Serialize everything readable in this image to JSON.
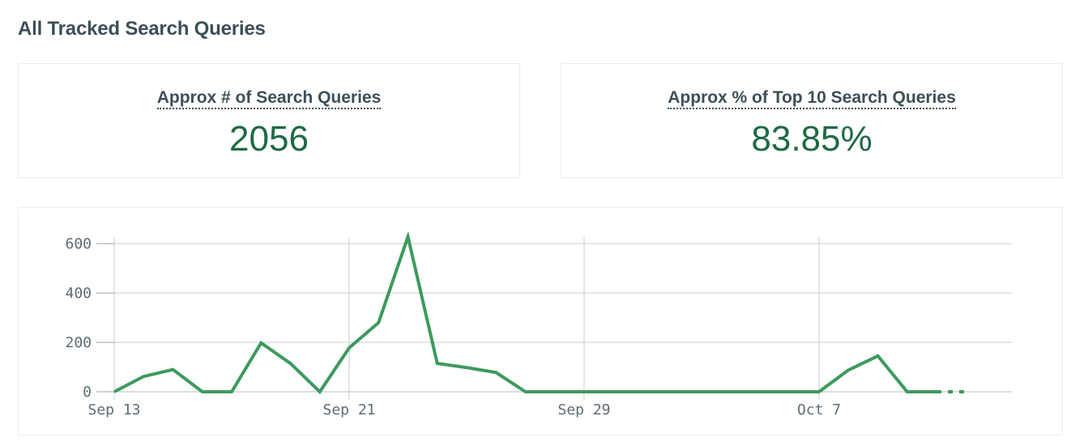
{
  "section_title": "All Tracked Search Queries",
  "stats": [
    {
      "label": "Approx # of Search Queries",
      "value": "2056"
    },
    {
      "label": "Approx % of Top 10 Search Queries",
      "value": "83.85%"
    }
  ],
  "colors": {
    "accent": "#1e6a43",
    "line": "#3d9a5e",
    "grid": "#c8cdd0",
    "text": "#3d4f58"
  },
  "chart_data": {
    "type": "line",
    "title": "",
    "xlabel": "",
    "ylabel": "",
    "x": [
      "Sep 13",
      "Sep 14",
      "Sep 15",
      "Sep 16",
      "Sep 17",
      "Sep 18",
      "Sep 19",
      "Sep 20",
      "Sep 21",
      "Sep 22",
      "Sep 23",
      "Sep 24",
      "Sep 25",
      "Sep 26",
      "Sep 27",
      "Sep 28",
      "Sep 29",
      "Sep 30",
      "Oct 1",
      "Oct 2",
      "Oct 3",
      "Oct 4",
      "Oct 5",
      "Oct 6",
      "Oct 7",
      "Oct 8",
      "Oct 9",
      "Oct 10",
      "Oct 11"
    ],
    "series": [
      {
        "values": [
          0,
          62,
          90,
          0,
          0,
          198,
          115,
          0,
          178,
          280,
          628,
          115,
          98,
          78,
          0,
          0,
          0,
          0,
          0,
          0,
          0,
          0,
          0,
          0,
          0,
          88,
          145,
          0,
          0
        ]
      }
    ],
    "partial_tail": {
      "x": [
        "Oct 11",
        "Oct 12"
      ],
      "values": [
        0,
        0
      ]
    },
    "x_ticks": [
      "Sep 13",
      "Sep 21",
      "Sep 29",
      "Oct 7"
    ],
    "y_ticks": [
      0,
      200,
      400,
      600
    ],
    "ylim": [
      0,
      650
    ],
    "grid": true,
    "legend": "none"
  }
}
